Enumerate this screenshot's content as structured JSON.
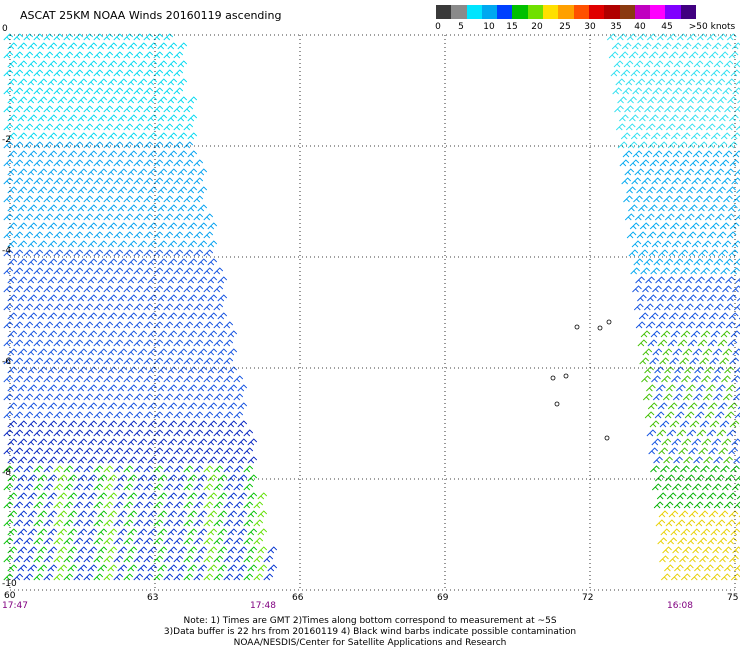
{
  "title": "ASCAT 25KM NOAA Winds 20160119 ascending",
  "color_scale": {
    "labels": [
      "0",
      "5",
      "10",
      "15",
      "20",
      "25",
      "30",
      "35",
      "40",
      "45",
      ">50 knots"
    ],
    "colors": [
      "#3a3a3a",
      "#8a8a8a",
      "#00e5ff",
      "#00a8f0",
      "#0040ff",
      "#00c000",
      "#70e000",
      "#ffe000",
      "#ffa000",
      "#ff5000",
      "#e00000",
      "#b00000",
      "#8a3a10",
      "#c000c0",
      "#ff00ff",
      "#8000ff",
      "#400080"
    ]
  },
  "axes": {
    "lon_labels": [
      "60",
      "63",
      "66",
      "69",
      "72",
      "75"
    ],
    "lat_labels": [
      "0",
      "-2",
      "-4",
      "-6",
      "-8",
      "-10"
    ]
  },
  "times": [
    "17:47",
    "17:48",
    "16:08"
  ],
  "notes": [
    "Note: 1) Times are GMT 2)Times along bottom correspond to measurement at ~5S",
    "3)Data buffer is 22 hrs from 20160119 4) Black wind barbs indicate possible contamination",
    "NOAA/NESDIS/Center for Satellite Applications and Research"
  ]
}
